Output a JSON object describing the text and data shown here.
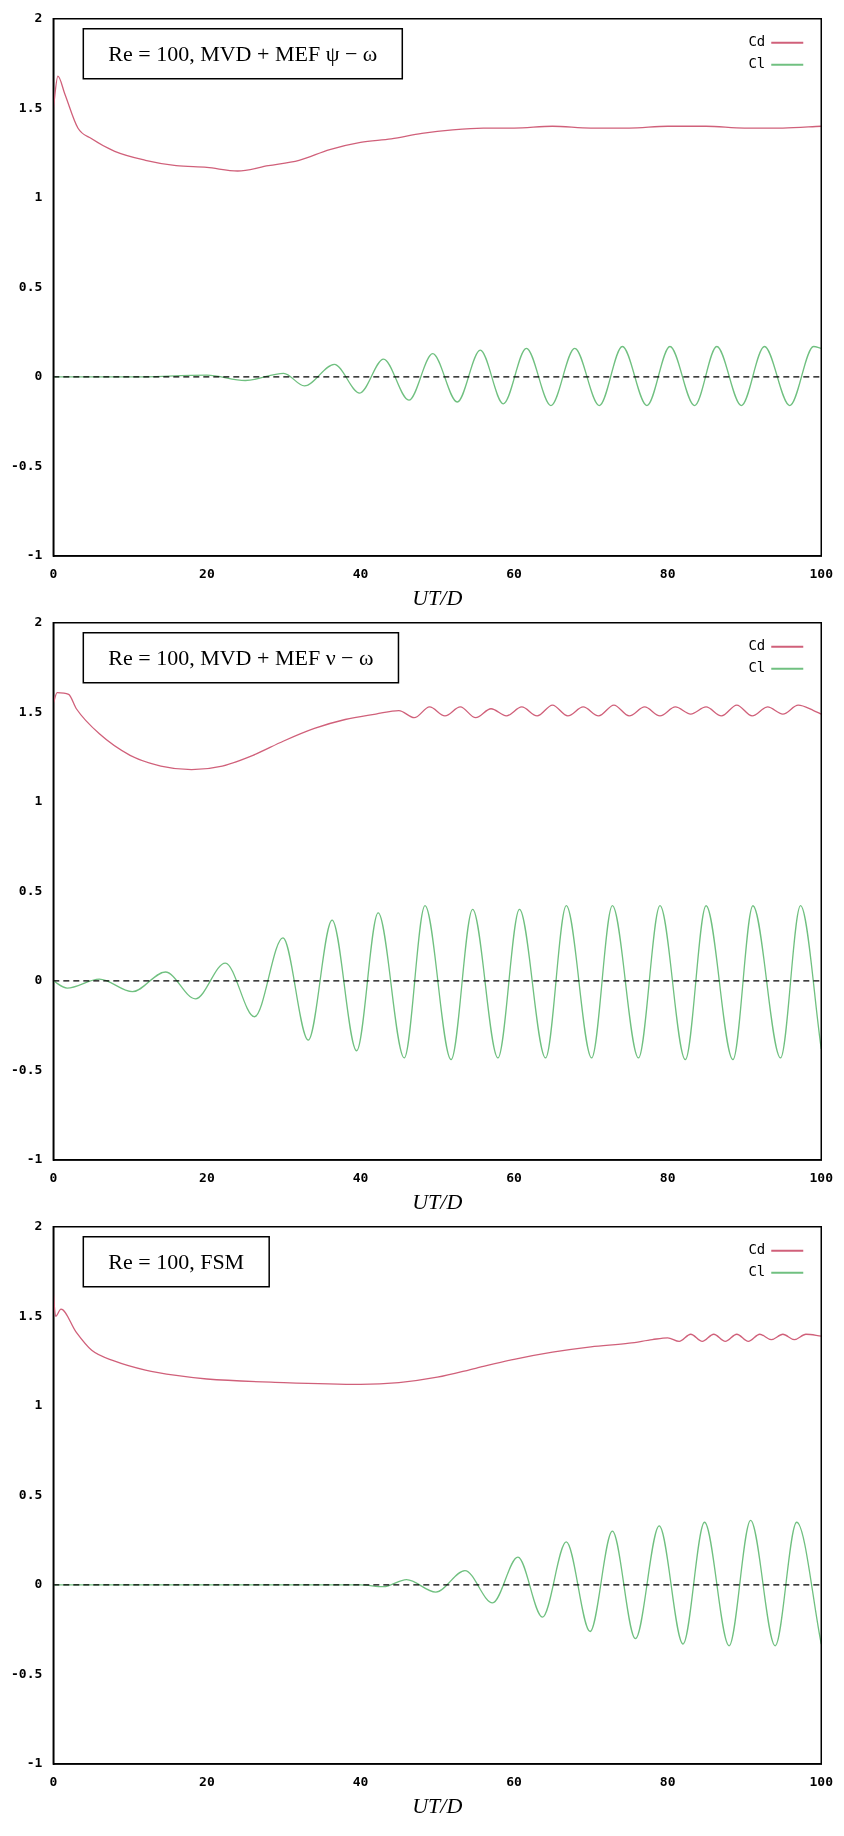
{
  "chart_data": [
    {
      "type": "line",
      "title": "Re = 100, MVD + MEF ψ − ω",
      "xlabel": "UT/D",
      "xlim": [
        0,
        100
      ],
      "ylim": [
        -1,
        2
      ],
      "xticks": [
        0,
        20,
        40,
        60,
        80,
        100
      ],
      "yticks": [
        -1,
        -0.5,
        0,
        0.5,
        1,
        1.5,
        2
      ],
      "grid": false,
      "legend": "top right",
      "marker": "none",
      "ref_lines": [
        {
          "axis": "y",
          "value": 0,
          "color": "#000000",
          "line_style": "dashed"
        }
      ],
      "series": [
        {
          "name": "Cd",
          "color": "#d0607a",
          "x": [
            0,
            0.6,
            1.5,
            3.2,
            5,
            8,
            12,
            16,
            20,
            24,
            28,
            32,
            36,
            40,
            44,
            48,
            52,
            56,
            60,
            65,
            70,
            75,
            80,
            85,
            90,
            95,
            100
          ],
          "values": [
            1.5,
            1.68,
            1.58,
            1.39,
            1.33,
            1.26,
            1.21,
            1.18,
            1.17,
            1.15,
            1.18,
            1.21,
            1.27,
            1.31,
            1.33,
            1.36,
            1.38,
            1.39,
            1.39,
            1.4,
            1.39,
            1.39,
            1.4,
            1.4,
            1.39,
            1.39,
            1.4
          ]
        },
        {
          "name": "Cl",
          "color": "#70c080",
          "x": [
            0,
            10,
            20,
            25,
            30,
            32.7,
            36.6,
            39.9,
            43,
            46.3,
            49.4,
            52.6,
            55.6,
            58.6,
            61.6,
            64.8,
            67.9,
            71.1,
            74.1,
            77.3,
            80.3,
            83.5,
            86.4,
            89.6,
            92.6,
            95.9,
            99,
            100
          ],
          "values": [
            0,
            0,
            0.01,
            -0.02,
            0.02,
            -0.05,
            0.07,
            -0.09,
            0.1,
            -0.13,
            0.13,
            -0.14,
            0.15,
            -0.15,
            0.16,
            -0.16,
            0.16,
            -0.16,
            0.17,
            -0.16,
            0.17,
            -0.16,
            0.17,
            -0.16,
            0.17,
            -0.16,
            0.17,
            0.16
          ]
        }
      ]
    },
    {
      "type": "line",
      "title": "Re = 100, MVD + MEF ν − ω",
      "xlabel": "UT/D",
      "xlim": [
        0,
        100
      ],
      "ylim": [
        -1,
        2
      ],
      "xticks": [
        0,
        20,
        40,
        60,
        80,
        100
      ],
      "yticks": [
        -1,
        -0.5,
        0,
        0.5,
        1,
        1.5,
        2
      ],
      "grid": false,
      "legend": "top right",
      "marker": "none",
      "ref_lines": [
        {
          "axis": "y",
          "value": 0,
          "color": "#000000",
          "line_style": "dashed"
        }
      ],
      "series": [
        {
          "name": "Cd",
          "color": "#d0607a",
          "x": [
            0,
            0.5,
            2,
            3,
            6,
            10,
            14,
            18,
            22,
            26,
            30,
            34,
            38,
            42,
            45,
            47,
            49,
            51,
            53,
            55,
            57,
            59,
            61,
            63,
            65,
            67,
            69,
            71,
            73,
            75,
            77,
            79,
            81,
            83,
            85,
            87,
            89,
            91,
            93,
            95,
            97,
            99,
            100
          ],
          "values": [
            1.55,
            1.61,
            1.6,
            1.52,
            1.38,
            1.26,
            1.2,
            1.18,
            1.2,
            1.26,
            1.34,
            1.41,
            1.46,
            1.49,
            1.51,
            1.47,
            1.53,
            1.48,
            1.53,
            1.47,
            1.52,
            1.48,
            1.53,
            1.48,
            1.54,
            1.48,
            1.53,
            1.48,
            1.54,
            1.48,
            1.53,
            1.48,
            1.53,
            1.49,
            1.53,
            1.48,
            1.54,
            1.48,
            1.53,
            1.49,
            1.54,
            1.51,
            1.49
          ]
        },
        {
          "name": "Cl",
          "color": "#70c080",
          "x": [
            0,
            1.8,
            6,
            10.3,
            14.6,
            18.5,
            22.4,
            26.2,
            29.9,
            33.2,
            36.3,
            39.5,
            42.3,
            45.7,
            48.4,
            51.8,
            54.6,
            57.9,
            60.7,
            64.1,
            66.8,
            70.1,
            72.8,
            76.2,
            79,
            82.3,
            85,
            88.5,
            91.1,
            94.7,
            97.3,
            100
          ],
          "values": [
            0,
            -0.04,
            0.01,
            -0.06,
            0.05,
            -0.1,
            0.1,
            -0.2,
            0.24,
            -0.33,
            0.34,
            -0.39,
            0.38,
            -0.43,
            0.42,
            -0.44,
            0.4,
            -0.43,
            0.4,
            -0.43,
            0.42,
            -0.43,
            0.42,
            -0.43,
            0.42,
            -0.44,
            0.42,
            -0.44,
            0.42,
            -0.43,
            0.42,
            -0.38
          ]
        }
      ]
    },
    {
      "type": "line",
      "title": "Re = 100, FSM",
      "xlabel": "UT/D",
      "xlim": [
        0,
        100
      ],
      "ylim": [
        -1,
        2
      ],
      "xticks": [
        0,
        20,
        40,
        60,
        80,
        100
      ],
      "yticks": [
        -1,
        -0.5,
        0,
        0.5,
        1,
        1.5,
        2
      ],
      "grid": false,
      "legend": "top right",
      "marker": "none",
      "ref_lines": [
        {
          "axis": "y",
          "value": 0,
          "color": "#000000",
          "line_style": "dashed"
        }
      ],
      "series": [
        {
          "name": "Cd",
          "color": "#d0607a",
          "x": [
            0,
            0.3,
            1,
            3,
            5,
            8,
            12,
            16,
            20,
            30,
            40,
            45,
            50,
            55,
            60,
            65,
            70,
            75,
            78,
            80,
            81.5,
            83,
            84.5,
            86,
            87.5,
            89,
            90.5,
            92,
            93.5,
            95,
            96.5,
            98,
            100
          ],
          "values": [
            1.63,
            1.5,
            1.54,
            1.41,
            1.31,
            1.25,
            1.2,
            1.17,
            1.15,
            1.13,
            1.12,
            1.13,
            1.16,
            1.21,
            1.26,
            1.3,
            1.33,
            1.35,
            1.37,
            1.38,
            1.36,
            1.4,
            1.36,
            1.4,
            1.36,
            1.4,
            1.36,
            1.4,
            1.37,
            1.4,
            1.37,
            1.4,
            1.39
          ]
        },
        {
          "name": "Cl",
          "color": "#70c080",
          "x": [
            0,
            40,
            43,
            46,
            49.8,
            53.6,
            57.2,
            60.5,
            63.7,
            66.8,
            69.9,
            72.8,
            75.8,
            78.9,
            82,
            84.8,
            88,
            90.8,
            94,
            96.8,
            100
          ],
          "values": [
            0,
            0,
            -0.01,
            0.03,
            -0.04,
            0.08,
            -0.1,
            0.155,
            -0.18,
            0.24,
            -0.26,
            0.3,
            -0.3,
            0.33,
            -0.33,
            0.35,
            -0.34,
            0.36,
            -0.34,
            0.35,
            -0.33
          ]
        }
      ]
    }
  ]
}
